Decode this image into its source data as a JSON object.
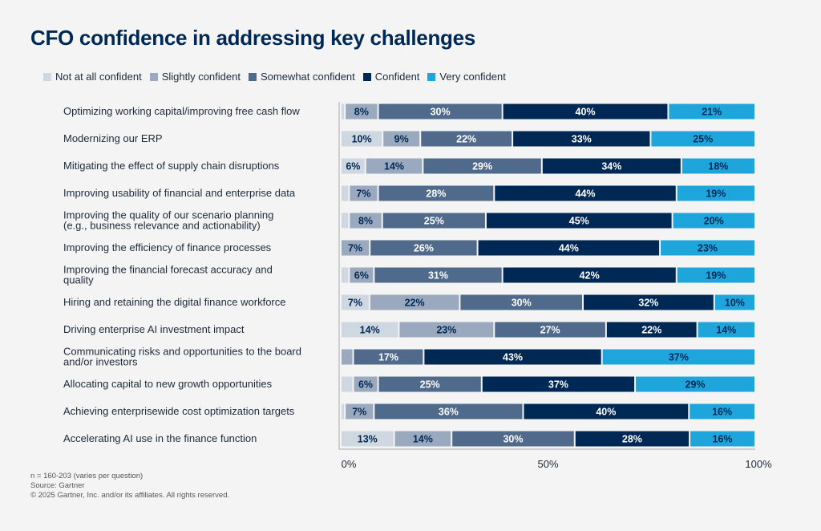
{
  "chart_data": {
    "type": "bar",
    "orientation": "horizontal",
    "stacked": true,
    "title": "CFO confidence in addressing key challenges",
    "xlim": [
      0,
      100
    ],
    "x_ticks": [
      "0%",
      "50%",
      "100%"
    ],
    "legend_placement": "top-left",
    "grid": false,
    "categories": [
      "Optimizing working capital/improving free cash flow",
      "Modernizing our ERP",
      "Mitigating the effect of supply chain disruptions",
      "Improving usability of financial and enterprise data",
      "Improving the quality of our scenario planning (e.g., business relevance and actionability)",
      "Improving the efficiency of finance processes",
      "Improving the financial forecast accuracy and quality",
      "Hiring and retaining the digital finance workforce",
      "Driving enterprise AI investment impact",
      "Communicating risks and opportunities to the board and/or investors",
      "Allocating capital to new growth opportunities",
      "Achieving enterprisewide cost optimization targets",
      "Accelerating AI use in the finance function"
    ],
    "series": [
      {
        "name": "Not at all confident",
        "color": "#cfd7e1",
        "label_color": "#002855",
        "values": [
          1,
          10,
          6,
          2,
          2,
          0,
          2,
          7,
          14,
          0,
          3,
          1,
          13
        ]
      },
      {
        "name": "Slightly confident",
        "color": "#9aa9bd",
        "label_color": "#002855",
        "values": [
          8,
          9,
          14,
          7,
          8,
          7,
          6,
          22,
          23,
          3,
          6,
          7,
          14
        ]
      },
      {
        "name": "Somewhat confident",
        "color": "#4f6a8a",
        "label_color": "#ffffff",
        "values": [
          30,
          22,
          29,
          28,
          25,
          26,
          31,
          30,
          27,
          17,
          25,
          36,
          30
        ]
      },
      {
        "name": "Confident",
        "color": "#002855",
        "label_color": "#ffffff",
        "values": [
          40,
          33,
          34,
          44,
          45,
          44,
          42,
          32,
          22,
          43,
          37,
          40,
          28
        ]
      },
      {
        "name": "Very confident",
        "color": "#1ea6dc",
        "label_color": "#002855",
        "values": [
          21,
          25,
          18,
          19,
          20,
          23,
          19,
          10,
          14,
          37,
          29,
          16,
          16
        ]
      }
    ]
  },
  "footnotes": {
    "n": "n = 160-203 (varies per question)",
    "source": "Source: Gartner",
    "copyright": "© 2025 Gartner, Inc. and/or its affiliates. All rights reserved."
  }
}
